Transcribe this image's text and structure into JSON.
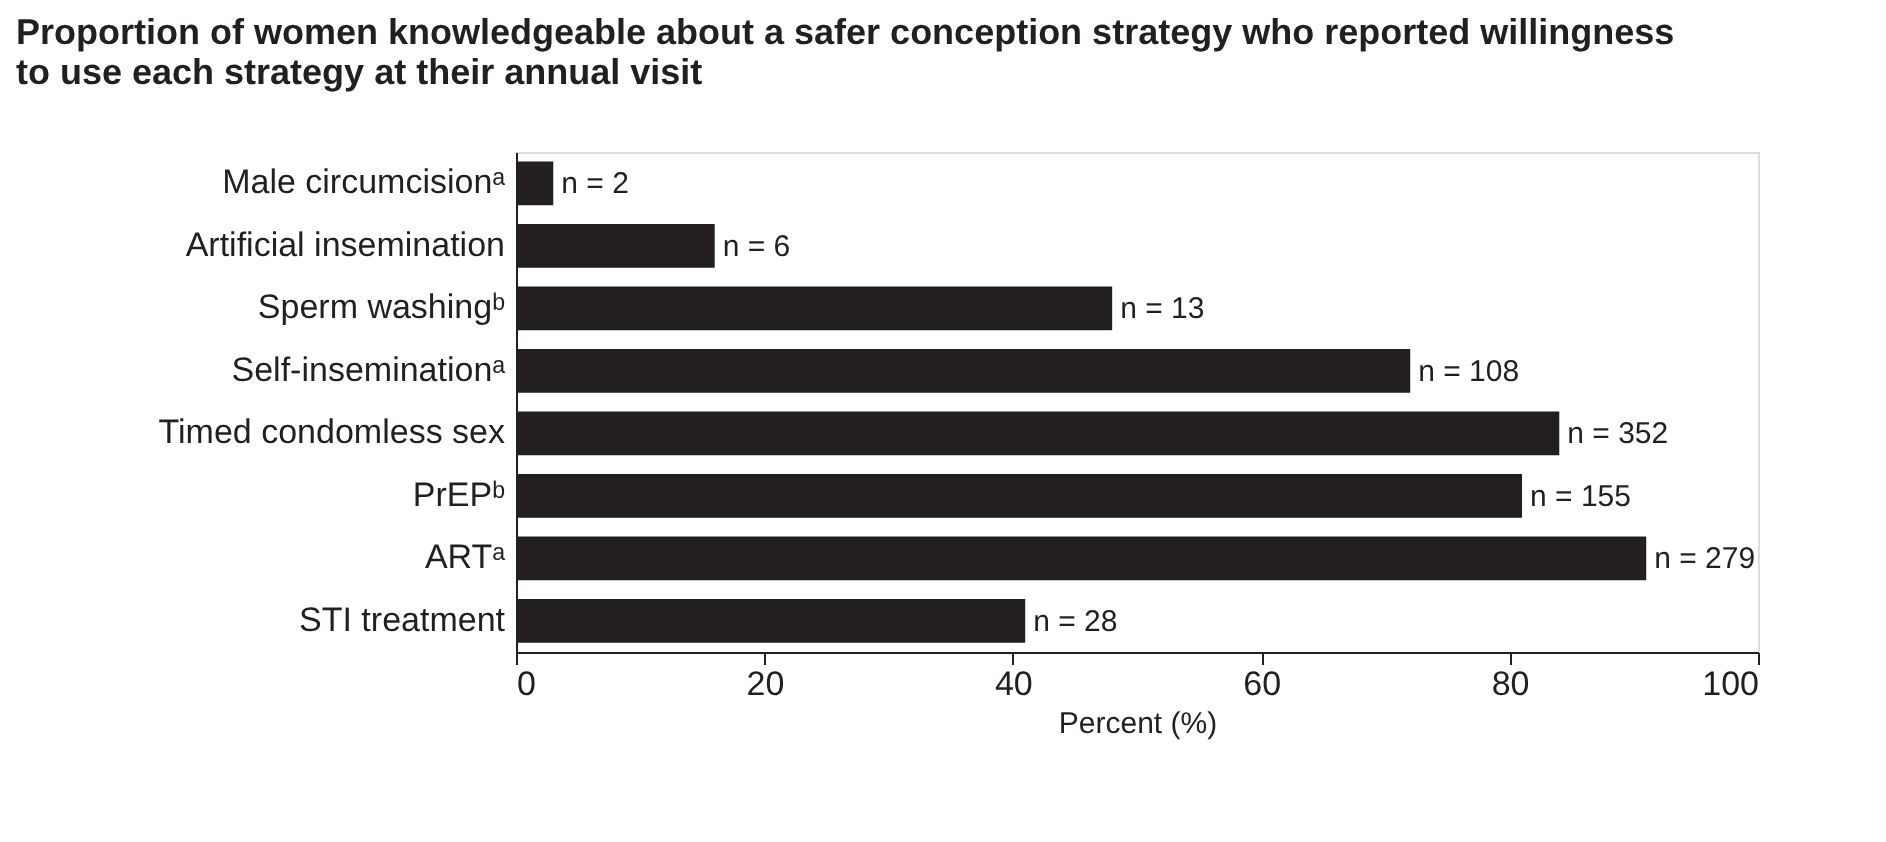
{
  "chart_data": {
    "type": "bar",
    "orientation": "horizontal",
    "title": "Proportion of women knowledgeable about a safer conception strategy  who reported willingness to use each strategy at their annual visit",
    "categories": [
      "Male circumcisionᵃ",
      "Artificial insemination",
      "Sperm washingᵇ",
      "Self-inseminationᵃ",
      "Timed condomless sex",
      "PrEPᵇ",
      "ARTᵃ",
      "STI treatment"
    ],
    "values": [
      3,
      16,
      48,
      72,
      84,
      81,
      91,
      41
    ],
    "annotations": [
      {
        "text": "n = 2",
        "x": 3,
        "y": "Male circumcisionᵃ"
      },
      {
        "text": "n = 6",
        "x": 16,
        "y": "Artificial insemination"
      },
      {
        "text": "n = 13",
        "x": 48,
        "y": "Sperm washingᵇ"
      },
      {
        "text": "n = 108",
        "x": 72,
        "y": "Self-inseminationᵃ"
      },
      {
        "text": "n = 352",
        "x": 84,
        "y": "Timed condomless sex"
      },
      {
        "text": "n = 155",
        "x": 81,
        "y": "PrEPᵇ"
      },
      {
        "text": "n = 279",
        "x": 91,
        "y": "ARTᵃ"
      },
      {
        "text": "n = 28",
        "x": 41,
        "y": "STI treatment"
      }
    ],
    "color": "#231f20",
    "xlim": [
      0,
      100
    ],
    "xticks": [
      0,
      20,
      40,
      60,
      80,
      100
    ],
    "xlabel": "Percent (%)",
    "grid": false
  }
}
